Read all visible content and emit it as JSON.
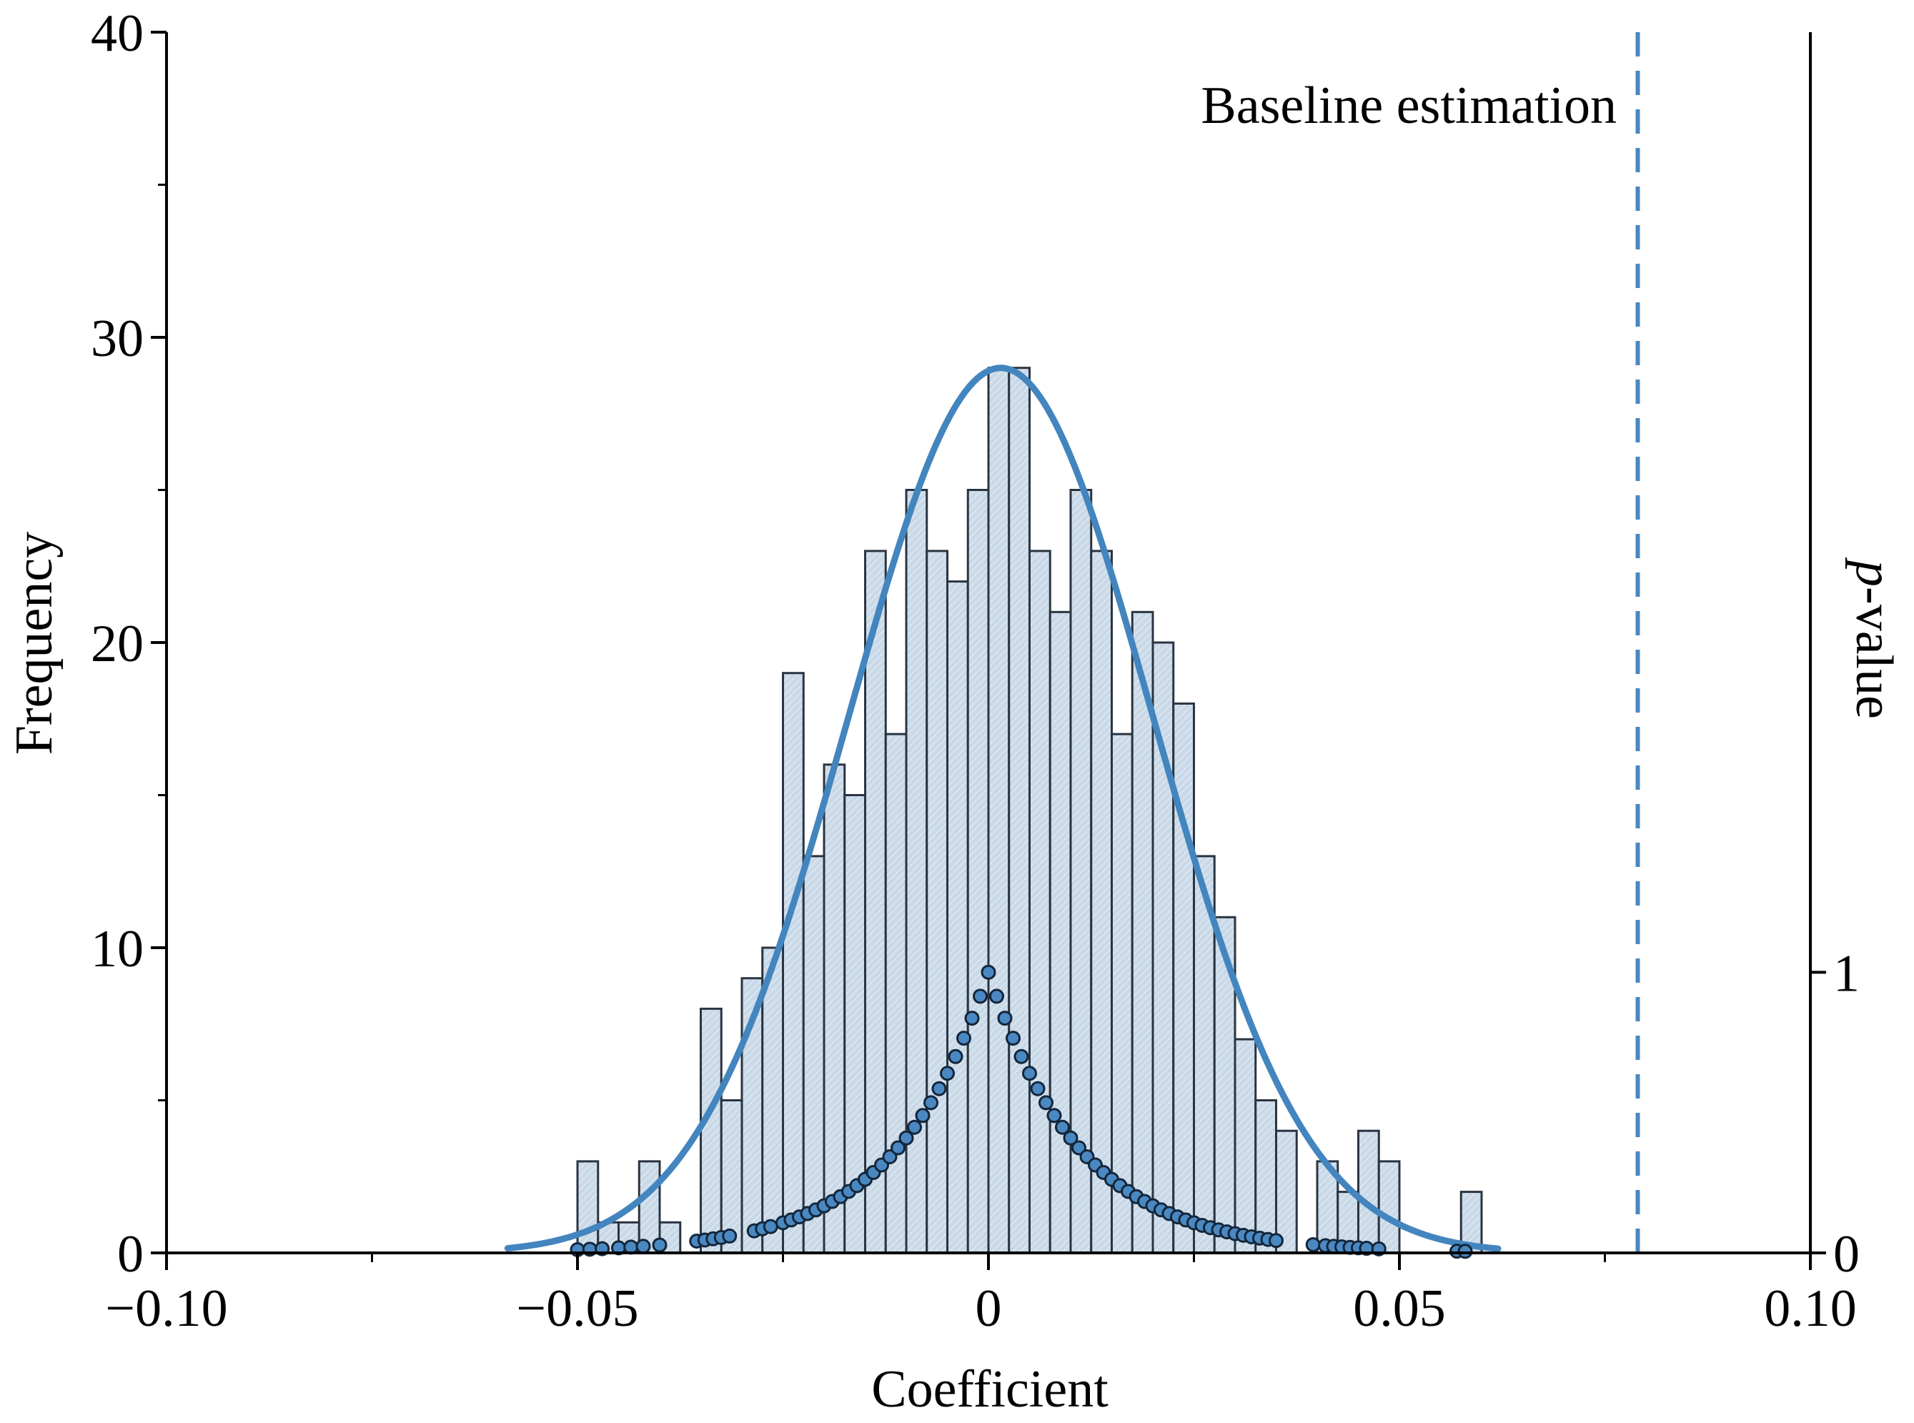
{
  "chart_data": {
    "type": "bar",
    "subtype": "histogram",
    "xlabel": "Coefficient",
    "ylabel": "Frequency",
    "y2label_italic": "p",
    "y2label_rest": "-value",
    "xlim": [
      -0.1,
      0.1
    ],
    "ylim": [
      0,
      40
    ],
    "y2lim": [
      0,
      4.35
    ],
    "xticks": [
      {
        "value": -0.1,
        "label": "−0.10"
      },
      {
        "value": -0.05,
        "label": "−0.05"
      },
      {
        "value": 0,
        "label": "0"
      },
      {
        "value": 0.05,
        "label": "0.05"
      },
      {
        "value": 0.1,
        "label": "0.10"
      }
    ],
    "yticks": [
      {
        "value": 0,
        "label": "0"
      },
      {
        "value": 10,
        "label": "10"
      },
      {
        "value": 20,
        "label": "20"
      },
      {
        "value": 30,
        "label": "30"
      },
      {
        "value": 40,
        "label": "40"
      }
    ],
    "y2ticks": [
      {
        "value": 0,
        "label": "0"
      },
      {
        "value": 1,
        "label": "1"
      }
    ],
    "bin_width": 0.0025,
    "bins": [
      {
        "x": -0.05,
        "count": 3
      },
      {
        "x": -0.0475,
        "count": 1
      },
      {
        "x": -0.045,
        "count": 1
      },
      {
        "x": -0.0425,
        "count": 3
      },
      {
        "x": -0.04,
        "count": 1
      },
      {
        "x": -0.035,
        "count": 8
      },
      {
        "x": -0.0325,
        "count": 5
      },
      {
        "x": -0.03,
        "count": 9
      },
      {
        "x": -0.0275,
        "count": 10
      },
      {
        "x": -0.025,
        "count": 19
      },
      {
        "x": -0.0225,
        "count": 13
      },
      {
        "x": -0.02,
        "count": 16
      },
      {
        "x": -0.0175,
        "count": 15
      },
      {
        "x": -0.015,
        "count": 23
      },
      {
        "x": -0.0125,
        "count": 17
      },
      {
        "x": -0.01,
        "count": 25
      },
      {
        "x": -0.0075,
        "count": 23
      },
      {
        "x": -0.005,
        "count": 22
      },
      {
        "x": -0.0025,
        "count": 25
      },
      {
        "x": 0.0,
        "count": 29
      },
      {
        "x": 0.0025,
        "count": 29
      },
      {
        "x": 0.005,
        "count": 23
      },
      {
        "x": 0.0075,
        "count": 21
      },
      {
        "x": 0.01,
        "count": 25
      },
      {
        "x": 0.0125,
        "count": 23
      },
      {
        "x": 0.015,
        "count": 17
      },
      {
        "x": 0.0175,
        "count": 21
      },
      {
        "x": 0.02,
        "count": 20
      },
      {
        "x": 0.0225,
        "count": 18
      },
      {
        "x": 0.025,
        "count": 13
      },
      {
        "x": 0.0275,
        "count": 11
      },
      {
        "x": 0.03,
        "count": 7
      },
      {
        "x": 0.0325,
        "count": 5
      },
      {
        "x": 0.035,
        "count": 4
      },
      {
        "x": 0.04,
        "count": 3
      },
      {
        "x": 0.0425,
        "count": 2
      },
      {
        "x": 0.045,
        "count": 4
      },
      {
        "x": 0.0475,
        "count": 3
      },
      {
        "x": 0.0575,
        "count": 2
      }
    ],
    "normal_fit": {
      "mean": 0.0015,
      "sd": 0.0185,
      "peak": 29,
      "x_range": [
        -0.0585,
        0.062
      ]
    },
    "pvalue_points": {
      "peak_x": 0.0,
      "peak_p": 1.0,
      "decay_scale": 0.0112,
      "x_values": [
        -0.05,
        -0.0485,
        -0.047,
        -0.045,
        -0.0435,
        -0.042,
        -0.04,
        -0.0355,
        -0.0345,
        -0.0335,
        -0.0325,
        -0.0315,
        -0.0285,
        -0.0275,
        -0.0265,
        -0.025,
        -0.024,
        -0.023,
        -0.022,
        -0.021,
        -0.02,
        -0.019,
        -0.018,
        -0.017,
        -0.016,
        -0.015,
        -0.014,
        -0.013,
        -0.012,
        -0.011,
        -0.01,
        -0.009,
        -0.008,
        -0.007,
        -0.006,
        -0.005,
        -0.004,
        -0.003,
        -0.002,
        -0.001,
        0.0,
        0.001,
        0.002,
        0.003,
        0.004,
        0.005,
        0.006,
        0.007,
        0.008,
        0.009,
        0.01,
        0.011,
        0.012,
        0.013,
        0.014,
        0.015,
        0.016,
        0.017,
        0.018,
        0.019,
        0.02,
        0.021,
        0.022,
        0.023,
        0.024,
        0.025,
        0.026,
        0.027,
        0.028,
        0.029,
        0.03,
        0.031,
        0.032,
        0.033,
        0.034,
        0.035,
        0.0395,
        0.041,
        0.042,
        0.043,
        0.044,
        0.045,
        0.046,
        0.0475,
        0.057,
        0.058
      ]
    },
    "baseline": {
      "x": 0.079,
      "label": "Baseline estimation"
    },
    "colors": {
      "bar_fill": "#c9d9e8",
      "bar_hatch": "#e3ebf3",
      "bar_stroke": "#2a3440",
      "curve": "#4385be",
      "point_fill": "#4a88c2",
      "point_stroke": "#14263a",
      "baseline": "#4a87bf"
    }
  }
}
